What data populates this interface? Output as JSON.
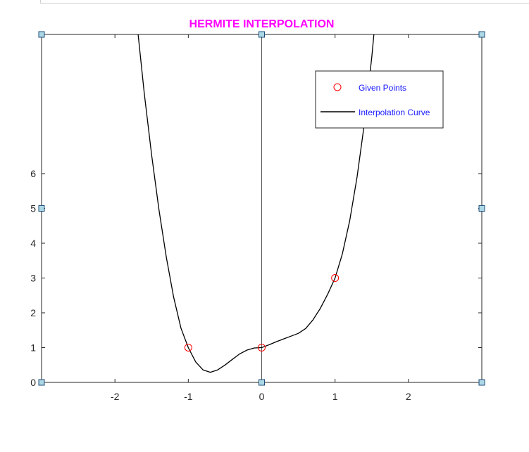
{
  "chart_data": {
    "type": "line",
    "title": "HERMITE INTERPOLATION",
    "title_color": "#ff00ff",
    "xlim": [
      -3,
      3
    ],
    "ylim": [
      0,
      10
    ],
    "x_ticks": [
      -2,
      -1,
      0,
      1,
      2
    ],
    "x_tick_labels": [
      "-2",
      "-1",
      "0",
      "1",
      "2"
    ],
    "y_ticks": [
      0,
      1,
      2,
      3,
      4,
      5,
      6
    ],
    "y_tick_labels": [
      "0",
      "1",
      "2",
      "3",
      "4",
      "5",
      "6"
    ],
    "grid": false,
    "legend_position": "top-right",
    "legend_text_color": "#1a1aff",
    "series": [
      {
        "name": "Given Points",
        "kind": "scatter",
        "marker": "circle",
        "color": "#ff0000",
        "x": [
          -1,
          0,
          1
        ],
        "y": [
          1,
          1,
          3
        ]
      },
      {
        "name": "Interpolation Curve",
        "kind": "line",
        "color": "#000000",
        "x": [
          -1.7,
          -1.6,
          -1.5,
          -1.4,
          -1.3,
          -1.2,
          -1.1,
          -1.0,
          -0.9,
          -0.8,
          -0.7,
          -0.6,
          -0.5,
          -0.4,
          -0.3,
          -0.2,
          -0.1,
          0.0,
          0.1,
          0.2,
          0.3,
          0.4,
          0.5,
          0.6,
          0.7,
          0.8,
          0.9,
          1.0,
          1.1,
          1.2,
          1.3,
          1.4,
          1.5,
          1.6
        ],
        "y": [
          10.33,
          8.31,
          6.53,
          4.96,
          3.6,
          2.45,
          1.56,
          1.0,
          0.59,
          0.36,
          0.29,
          0.36,
          0.5,
          0.66,
          0.82,
          0.93,
          0.99,
          1.0,
          1.08,
          1.17,
          1.25,
          1.33,
          1.41,
          1.55,
          1.8,
          2.13,
          2.54,
          3.0,
          3.7,
          4.65,
          5.9,
          7.44,
          9.35,
          11.6
        ]
      }
    ],
    "axis_line_x": 0,
    "handles": [
      {
        "x": -3,
        "y": 10
      },
      {
        "x": 0,
        "y": 10
      },
      {
        "x": 3,
        "y": 10
      },
      {
        "x": -3,
        "y": 5
      },
      {
        "x": 3,
        "y": 5
      },
      {
        "x": -3,
        "y": 0
      },
      {
        "x": 0,
        "y": 0
      },
      {
        "x": 3,
        "y": 0
      }
    ],
    "handle_color": "#add8e6"
  }
}
